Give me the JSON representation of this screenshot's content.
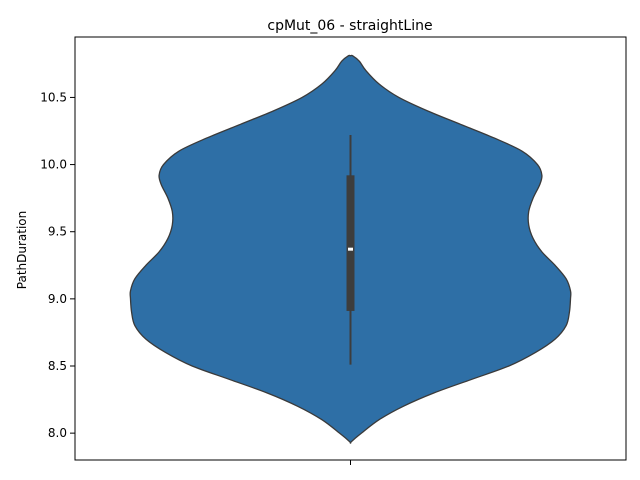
{
  "chart_data": {
    "type": "violin",
    "title": "cpMut_06 - straightLine",
    "xlabel": "",
    "ylabel": "PathDuration",
    "ylim": [
      7.8,
      10.95
    ],
    "yticks": [
      8.0,
      8.5,
      9.0,
      9.5,
      10.0,
      10.5
    ],
    "ytick_labels": [
      "8.0",
      "8.5",
      "9.0",
      "9.5",
      "10.0",
      "10.5"
    ],
    "xtick_labels": [
      ""
    ],
    "grid": false,
    "legend": "none",
    "colors": {
      "violin_fill": "#2e6fa6",
      "violin_edge": "#3a3a3a",
      "box": "#3d3d3d",
      "median": "#ffffff"
    },
    "series": [
      {
        "min": 8.51,
        "q1": 8.91,
        "median": 9.37,
        "q3": 9.92,
        "max": 10.22,
        "density_profile": [
          [
            7.93,
            0.0
          ],
          [
            7.96,
            0.02
          ],
          [
            8.0,
            0.05
          ],
          [
            8.1,
            0.13
          ],
          [
            8.2,
            0.24
          ],
          [
            8.3,
            0.38
          ],
          [
            8.4,
            0.55
          ],
          [
            8.5,
            0.72
          ],
          [
            8.6,
            0.84
          ],
          [
            8.7,
            0.93
          ],
          [
            8.8,
            0.98
          ],
          [
            8.9,
            0.995
          ],
          [
            9.0,
            1.0
          ],
          [
            9.06,
            1.0
          ],
          [
            9.15,
            0.98
          ],
          [
            9.25,
            0.93
          ],
          [
            9.35,
            0.87
          ],
          [
            9.45,
            0.83
          ],
          [
            9.55,
            0.81
          ],
          [
            9.65,
            0.81
          ],
          [
            9.75,
            0.83
          ],
          [
            9.85,
            0.86
          ],
          [
            9.92,
            0.87
          ],
          [
            10.0,
            0.85
          ],
          [
            10.1,
            0.78
          ],
          [
            10.2,
            0.65
          ],
          [
            10.3,
            0.5
          ],
          [
            10.4,
            0.35
          ],
          [
            10.5,
            0.22
          ],
          [
            10.6,
            0.13
          ],
          [
            10.7,
            0.07
          ],
          [
            10.77,
            0.04
          ],
          [
            10.81,
            0.01
          ],
          [
            10.81,
            0.0
          ]
        ]
      }
    ]
  }
}
